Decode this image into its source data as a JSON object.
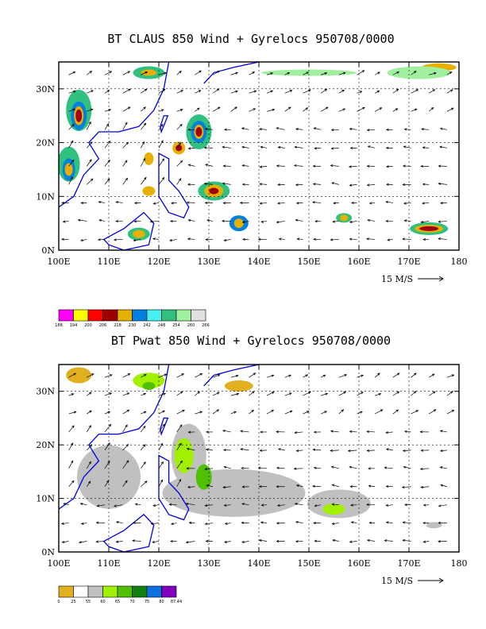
{
  "chart_data": [
    {
      "type": "map-vector",
      "title": "BT CLAUS 850 Wind + Gyrelocs 950708/0000",
      "x_ticks": [
        "100E",
        "110E",
        "120E",
        "130E",
        "140E",
        "150E",
        "160E",
        "170E",
        "180"
      ],
      "y_ticks": [
        "0N",
        "10N",
        "20N",
        "30N"
      ],
      "xlim": [
        100,
        180
      ],
      "ylim": [
        0,
        35
      ],
      "reference_vector": "15 M/S",
      "colorbar": {
        "labels": [
          "188",
          "194",
          "200",
          "206",
          "218",
          "230",
          "242",
          "248",
          "254",
          "260",
          "266"
        ],
        "colors": [
          "#ff00ff",
          "#ffff00",
          "#ff0000",
          "#a00000",
          "#e6b000",
          "#0080e0",
          "#44f0f0",
          "#30c080",
          "#a0f0a0",
          "#e0e0e0"
        ]
      },
      "grid": true
    },
    {
      "type": "map-vector",
      "title": "BT Pwat 850 Wind + Gyrelocs 950708/0000",
      "x_ticks": [
        "100E",
        "110E",
        "120E",
        "130E",
        "140E",
        "150E",
        "160E",
        "170E",
        "180"
      ],
      "y_ticks": [
        "0N",
        "10N",
        "20N",
        "30N"
      ],
      "xlim": [
        100,
        180
      ],
      "ylim": [
        0,
        35
      ],
      "reference_vector": "15 M/S",
      "colorbar": {
        "labels": [
          "0",
          "25",
          "55",
          "60",
          "65",
          "70",
          "75",
          "80",
          "87.44"
        ],
        "colors": [
          "#e0b020",
          "#ffffff",
          "#c0c0c0",
          "#a0f000",
          "#50c000",
          "#108010",
          "#1070e0",
          "#8000c0"
        ]
      },
      "grid": true
    }
  ]
}
